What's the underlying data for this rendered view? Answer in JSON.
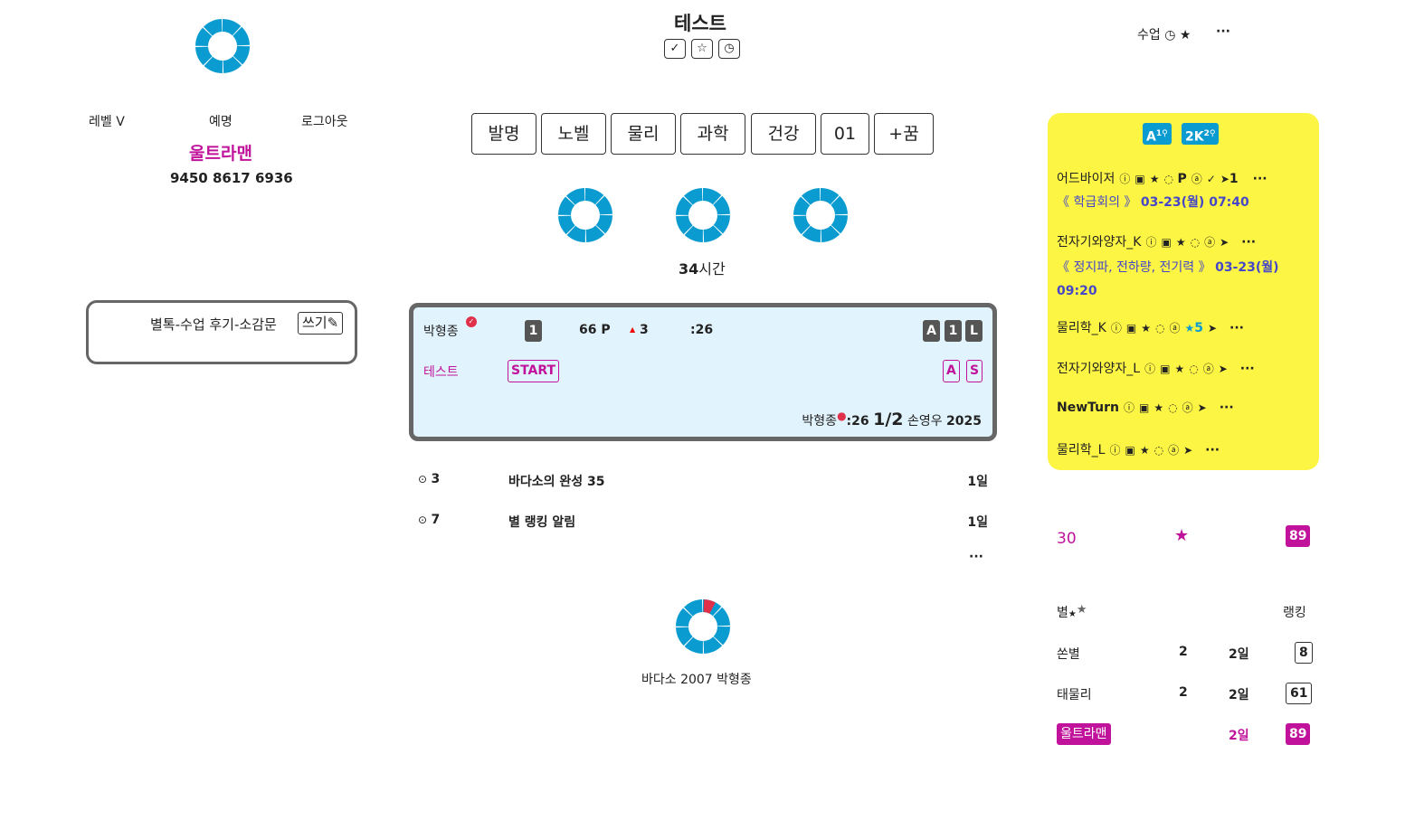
{
  "header": {
    "title": "테스트",
    "icons": [
      "check-icon",
      "star-outline-icon",
      "clock-icon"
    ],
    "right_label": "수업",
    "right_icons": [
      "clock-icon",
      "star-icon"
    ],
    "more": "···"
  },
  "profile": {
    "level": "레벨 V",
    "honor": "예명",
    "logout": "로그아웃",
    "name": "울트라맨",
    "code": "9450 8617 6936"
  },
  "review": {
    "label": "별톡-수업 후기-소감문",
    "write": "쓰기"
  },
  "categories": [
    "발명",
    "노벨",
    "물리",
    "과학",
    "건강",
    "01",
    "+꿈"
  ],
  "hours": {
    "value": "34",
    "unit": "시간"
  },
  "card": {
    "name": "박형종",
    "rank": "1",
    "points": "66 P",
    "up": "3",
    "time": ":26",
    "badges": [
      "A",
      "1",
      "L"
    ],
    "title": "테스트",
    "start": "START",
    "tags": [
      "A",
      "S"
    ],
    "footer_name": "박형종",
    "footer_time": ":26",
    "footer_frac": "1/2",
    "footer_teacher": "손영우",
    "footer_year": "2025"
  },
  "list": [
    {
      "num": "3",
      "title": "바다소의 완성 35",
      "age": "1일"
    },
    {
      "num": "7",
      "title": "별 랭킹 알림",
      "age": "1일"
    }
  ],
  "list_more": "···",
  "bottom": {
    "caption": "바다소 2007 박형종"
  },
  "yellow": {
    "tabs": [
      {
        "label": "A",
        "sup": "1"
      },
      {
        "label": "2K",
        "sup": "2"
      }
    ],
    "items": [
      {
        "name": "어드바이저",
        "extra": "P",
        "tail": "1",
        "sub": "《 학급회의 》",
        "date": "03-23(월) 07:40"
      },
      {
        "name": "전자기와양자_K",
        "sub": "《 정지파, 전하량, 전기력 》",
        "date": "03-23(월)",
        "date2": "09:20"
      },
      {
        "name": "물리학_K",
        "star_count": "5"
      },
      {
        "name": "전자기와양자_L"
      },
      {
        "name": "NewTurn"
      },
      {
        "name": "물리학_L"
      }
    ]
  },
  "stats": {
    "score": "30",
    "rank_badge": "89"
  },
  "ranking": {
    "header_left": "별",
    "header_right": "랭킹",
    "rows": [
      {
        "name": "쏜별",
        "count": "2",
        "age": "2일",
        "rank": "8"
      },
      {
        "name": "태물리",
        "count": "2",
        "age": "2일",
        "rank": "61"
      },
      {
        "name": "울트라맨",
        "count": "",
        "age": "2일",
        "rank": "89"
      }
    ]
  },
  "colors": {
    "accent": "#c0129a",
    "ring": "#0a9bd0",
    "panel": "#fdf544",
    "card_bg": "#e1f3fc",
    "blue_badge": "#0a9bd0",
    "red": "#e0304a"
  }
}
